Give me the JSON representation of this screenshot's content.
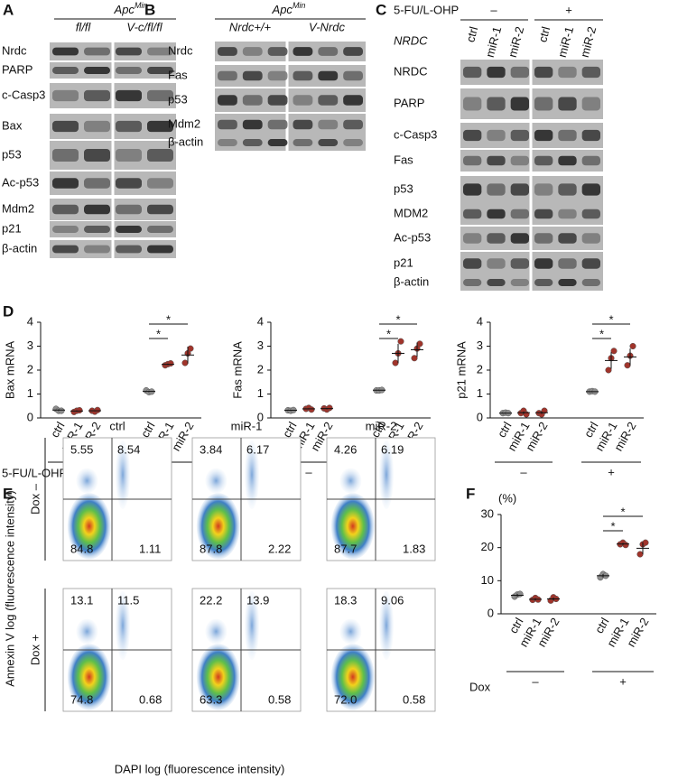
{
  "figure": {
    "A": {
      "label": "A",
      "genotype": {
        "base": "Apc",
        "sup": "Min"
      },
      "groups": [
        "fl/fl",
        "V-c/fl/fl"
      ],
      "rows": [
        "Nrdc",
        "PARP",
        "c-Casp3",
        "Bax",
        "p53",
        "Ac-p53",
        "Mdm2",
        "p21",
        "β-actin"
      ]
    },
    "B": {
      "label": "B",
      "genotype": {
        "base": "Apc",
        "sup": "Min"
      },
      "groups": [
        "Nrdc+/+",
        "V-Nrdc"
      ],
      "rows": [
        "Nrdc",
        "Fas",
        "p53",
        "Mdm2",
        "β-actin"
      ]
    },
    "C": {
      "label": "C",
      "treatment": "5-FU/L-OHP",
      "signs": [
        "–",
        "+"
      ],
      "knockdown": "NRDC",
      "lanes": [
        "ctrl",
        "miR-1",
        "miR-2",
        "ctrl",
        "miR-1",
        "miR-2"
      ],
      "rows": [
        "NRDC",
        "PARP",
        "c-Casp3",
        "Fas",
        "p53",
        "MDM2",
        "Ac-p53",
        "p21",
        "β-actin"
      ]
    },
    "D": {
      "label": "D"
    },
    "E": {
      "label": "E",
      "columns": [
        "ctrl",
        "miR-1",
        "miR-2"
      ],
      "rows": [
        "Dox –",
        "Dox +"
      ],
      "ylabel": "Annexin V log (fluorescence intensity)",
      "xlabel": "DAPI log (fluorescence intensity)",
      "quadrants": [
        [
          [
            "5.55",
            "8.54",
            "84.8",
            "1.11"
          ],
          [
            "3.84",
            "6.17",
            "87.8",
            "2.22"
          ],
          [
            "4.26",
            "6.19",
            "87.7",
            "1.83"
          ]
        ],
        [
          [
            "13.1",
            "11.5",
            "74.8",
            "0.68"
          ],
          [
            "22.2",
            "13.9",
            "63.3",
            "0.58"
          ],
          [
            "18.3",
            "9.06",
            "72.0",
            "0.58"
          ]
        ]
      ]
    },
    "F": {
      "label": "F"
    }
  },
  "chart_data": [
    {
      "type": "dot",
      "ylabel": "Bax mRNA",
      "ylim": [
        0,
        4
      ],
      "yticks": [
        0,
        1,
        2,
        3,
        4
      ],
      "categories": [
        "ctrl",
        "miR-1",
        "miR-2",
        "ctrl",
        "miR-1",
        "miR-2"
      ],
      "group_title": "5-FU/L-OHP",
      "group_labels": [
        "–",
        "+"
      ],
      "colors": [
        "#8c8c8c",
        "#a0342b",
        "#a0342b",
        "#8c8c8c",
        "#a0342b",
        "#a0342b"
      ],
      "points": [
        [
          0.38,
          0.3,
          0.3
        ],
        [
          0.25,
          0.3,
          0.32
        ],
        [
          0.3,
          0.26,
          0.33
        ],
        [
          1.15,
          1.08,
          1.1
        ],
        [
          2.2,
          2.25,
          2.28
        ],
        [
          2.3,
          2.7,
          2.9
        ]
      ],
      "means": [
        0.33,
        0.29,
        0.3,
        1.11,
        2.24,
        2.63
      ],
      "errors": [
        0.03,
        0.02,
        0.02,
        0.02,
        0.03,
        0.35
      ],
      "significance": [
        "*",
        "*"
      ]
    },
    {
      "type": "dot",
      "ylabel": "Fas mRNA",
      "ylim": [
        0,
        4
      ],
      "yticks": [
        0,
        1,
        2,
        3,
        4
      ],
      "categories": [
        "ctrl",
        "miR-1",
        "miR-2",
        "ctrl",
        "miR-1",
        "miR-2"
      ],
      "group_labels": [
        "–",
        "+"
      ],
      "colors": [
        "#8c8c8c",
        "#a0342b",
        "#a0342b",
        "#8c8c8c",
        "#a0342b",
        "#a0342b"
      ],
      "points": [
        [
          0.32,
          0.3,
          0.33
        ],
        [
          0.38,
          0.42,
          0.35
        ],
        [
          0.4,
          0.35,
          0.42
        ],
        [
          1.15,
          1.15,
          1.17
        ],
        [
          2.3,
          2.7,
          3.2
        ],
        [
          2.5,
          2.9,
          3.1
        ]
      ],
      "means": [
        0.32,
        0.38,
        0.39,
        1.16,
        2.7,
        2.85
      ],
      "errors": [
        0.01,
        0.02,
        0.02,
        0.01,
        0.4,
        0.3
      ],
      "significance": [
        "*",
        "*"
      ]
    },
    {
      "type": "dot",
      "ylabel": "p21 mRNA",
      "ylim": [
        0,
        4
      ],
      "yticks": [
        0,
        1,
        2,
        3,
        4
      ],
      "categories": [
        "ctrl",
        "miR-1",
        "miR-2",
        "ctrl",
        "miR-1",
        "miR-2"
      ],
      "group_labels": [
        "–",
        "+"
      ],
      "colors": [
        "#8c8c8c",
        "#a0342b",
        "#a0342b",
        "#8c8c8c",
        "#a0342b",
        "#a0342b"
      ],
      "points": [
        [
          0.2,
          0.22,
          0.2
        ],
        [
          0.2,
          0.3,
          0.15
        ],
        [
          0.2,
          0.15,
          0.3
        ],
        [
          1.1,
          1.12,
          1.1
        ],
        [
          2.0,
          2.5,
          2.8
        ],
        [
          2.2,
          2.6,
          3.0
        ]
      ],
      "means": [
        0.2,
        0.22,
        0.22,
        1.1,
        2.4,
        2.55
      ],
      "errors": [
        0.01,
        0.05,
        0.05,
        0.01,
        0.35,
        0.35
      ],
      "significance": [
        "*",
        "*"
      ]
    },
    {
      "type": "dot",
      "unit": "(%)",
      "ylim": [
        0,
        30
      ],
      "yticks": [
        0,
        10,
        20,
        30
      ],
      "categories": [
        "ctrl",
        "miR-1",
        "miR-2",
        "ctrl",
        "miR-1",
        "miR-2"
      ],
      "group_title": "Dox",
      "group_labels": [
        "–",
        "+"
      ],
      "colors": [
        "#8c8c8c",
        "#a0342b",
        "#a0342b",
        "#8c8c8c",
        "#a0342b",
        "#a0342b"
      ],
      "points": [
        [
          5.2,
          5.8,
          6
        ],
        [
          4.2,
          4.8,
          4.3
        ],
        [
          4,
          5,
          4.5
        ],
        [
          11,
          12,
          11.5
        ],
        [
          21,
          21.5,
          20.8
        ],
        [
          18,
          21,
          21.5
        ]
      ],
      "means": [
        5.6,
        4.4,
        4.5,
        11.5,
        21.1,
        19.8
      ],
      "errors": [
        0.4,
        0.3,
        0.4,
        0.5,
        0.3,
        1.8
      ],
      "significance": [
        "*",
        "*"
      ]
    }
  ]
}
